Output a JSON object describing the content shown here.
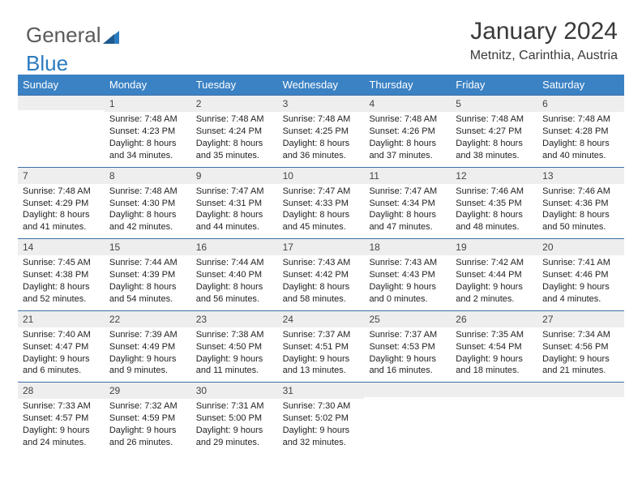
{
  "logo": {
    "text1": "General",
    "text2": "Blue"
  },
  "title": {
    "month": "January 2024",
    "location": "Metnitz, Carinthia, Austria"
  },
  "dow": [
    "Sunday",
    "Monday",
    "Tuesday",
    "Wednesday",
    "Thursday",
    "Friday",
    "Saturday"
  ],
  "colors": {
    "header_bg": "#3b82c4",
    "header_text": "#ffffff",
    "daynum_bg": "#eeeeee",
    "week_border": "#3b6fa5",
    "text": "#222222"
  },
  "weeks": [
    [
      null,
      {
        "n": "1",
        "sr": "7:48 AM",
        "ss": "4:23 PM",
        "dl": "8 hours and 34 minutes."
      },
      {
        "n": "2",
        "sr": "7:48 AM",
        "ss": "4:24 PM",
        "dl": "8 hours and 35 minutes."
      },
      {
        "n": "3",
        "sr": "7:48 AM",
        "ss": "4:25 PM",
        "dl": "8 hours and 36 minutes."
      },
      {
        "n": "4",
        "sr": "7:48 AM",
        "ss": "4:26 PM",
        "dl": "8 hours and 37 minutes."
      },
      {
        "n": "5",
        "sr": "7:48 AM",
        "ss": "4:27 PM",
        "dl": "8 hours and 38 minutes."
      },
      {
        "n": "6",
        "sr": "7:48 AM",
        "ss": "4:28 PM",
        "dl": "8 hours and 40 minutes."
      }
    ],
    [
      {
        "n": "7",
        "sr": "7:48 AM",
        "ss": "4:29 PM",
        "dl": "8 hours and 41 minutes."
      },
      {
        "n": "8",
        "sr": "7:48 AM",
        "ss": "4:30 PM",
        "dl": "8 hours and 42 minutes."
      },
      {
        "n": "9",
        "sr": "7:47 AM",
        "ss": "4:31 PM",
        "dl": "8 hours and 44 minutes."
      },
      {
        "n": "10",
        "sr": "7:47 AM",
        "ss": "4:33 PM",
        "dl": "8 hours and 45 minutes."
      },
      {
        "n": "11",
        "sr": "7:47 AM",
        "ss": "4:34 PM",
        "dl": "8 hours and 47 minutes."
      },
      {
        "n": "12",
        "sr": "7:46 AM",
        "ss": "4:35 PM",
        "dl": "8 hours and 48 minutes."
      },
      {
        "n": "13",
        "sr": "7:46 AM",
        "ss": "4:36 PM",
        "dl": "8 hours and 50 minutes."
      }
    ],
    [
      {
        "n": "14",
        "sr": "7:45 AM",
        "ss": "4:38 PM",
        "dl": "8 hours and 52 minutes."
      },
      {
        "n": "15",
        "sr": "7:44 AM",
        "ss": "4:39 PM",
        "dl": "8 hours and 54 minutes."
      },
      {
        "n": "16",
        "sr": "7:44 AM",
        "ss": "4:40 PM",
        "dl": "8 hours and 56 minutes."
      },
      {
        "n": "17",
        "sr": "7:43 AM",
        "ss": "4:42 PM",
        "dl": "8 hours and 58 minutes."
      },
      {
        "n": "18",
        "sr": "7:43 AM",
        "ss": "4:43 PM",
        "dl": "9 hours and 0 minutes."
      },
      {
        "n": "19",
        "sr": "7:42 AM",
        "ss": "4:44 PM",
        "dl": "9 hours and 2 minutes."
      },
      {
        "n": "20",
        "sr": "7:41 AM",
        "ss": "4:46 PM",
        "dl": "9 hours and 4 minutes."
      }
    ],
    [
      {
        "n": "21",
        "sr": "7:40 AM",
        "ss": "4:47 PM",
        "dl": "9 hours and 6 minutes."
      },
      {
        "n": "22",
        "sr": "7:39 AM",
        "ss": "4:49 PM",
        "dl": "9 hours and 9 minutes."
      },
      {
        "n": "23",
        "sr": "7:38 AM",
        "ss": "4:50 PM",
        "dl": "9 hours and 11 minutes."
      },
      {
        "n": "24",
        "sr": "7:37 AM",
        "ss": "4:51 PM",
        "dl": "9 hours and 13 minutes."
      },
      {
        "n": "25",
        "sr": "7:37 AM",
        "ss": "4:53 PM",
        "dl": "9 hours and 16 minutes."
      },
      {
        "n": "26",
        "sr": "7:35 AM",
        "ss": "4:54 PM",
        "dl": "9 hours and 18 minutes."
      },
      {
        "n": "27",
        "sr": "7:34 AM",
        "ss": "4:56 PM",
        "dl": "9 hours and 21 minutes."
      }
    ],
    [
      {
        "n": "28",
        "sr": "7:33 AM",
        "ss": "4:57 PM",
        "dl": "9 hours and 24 minutes."
      },
      {
        "n": "29",
        "sr": "7:32 AM",
        "ss": "4:59 PM",
        "dl": "9 hours and 26 minutes."
      },
      {
        "n": "30",
        "sr": "7:31 AM",
        "ss": "5:00 PM",
        "dl": "9 hours and 29 minutes."
      },
      {
        "n": "31",
        "sr": "7:30 AM",
        "ss": "5:02 PM",
        "dl": "9 hours and 32 minutes."
      },
      null,
      null,
      null
    ]
  ],
  "labels": {
    "sunrise": "Sunrise: ",
    "sunset": "Sunset: ",
    "daylight": "Daylight: "
  }
}
